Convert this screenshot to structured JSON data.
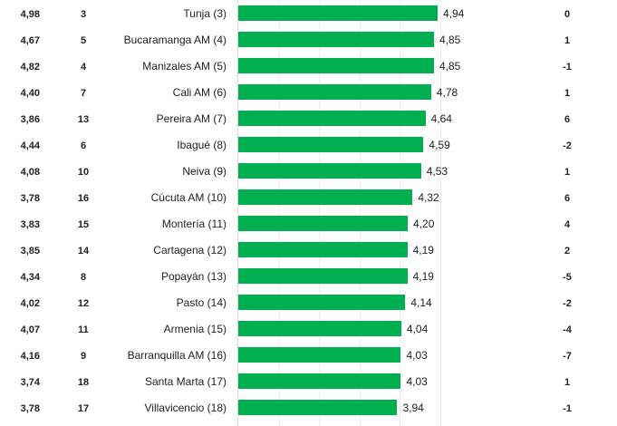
{
  "colors": {
    "bar": "#00b050",
    "text": "#222222",
    "axis": "#d9d9d9"
  },
  "chart_data": {
    "type": "bar",
    "orientation": "horizontal",
    "xlim": [
      0,
      5
    ],
    "grid": true,
    "categories": [
      "Tunja (3)",
      "Bucaramanga AM (4)",
      "Manizales AM (5)",
      "Cali AM (6)",
      "Pereira AM (7)",
      "Ibagué (8)",
      "Neiva (9)",
      "Cúcuta AM (10)",
      "Montería (11)",
      "Cartagena (12)",
      "Popayán (13)",
      "Pasto (14)",
      "Armenia (15)",
      "Barranquilla AM (16)",
      "Santa Marta (17)",
      "Villavicencio (18)"
    ],
    "values": [
      "4,94",
      "4,85",
      "4,85",
      "4,78",
      "4,64",
      "4,59",
      "4,53",
      "4,32",
      "4,20",
      "4,19",
      "4,19",
      "4,14",
      "4,04",
      "4,03",
      "4,03",
      "3,94"
    ],
    "previous_score": [
      "4,98",
      "4,67",
      "4,82",
      "4,40",
      "3,86",
      "4,44",
      "4,08",
      "3,78",
      "3,83",
      "3,85",
      "4,34",
      "4,02",
      "4,07",
      "4,16",
      "3,74",
      "3,78"
    ],
    "previous_rank": [
      "3",
      "5",
      "4",
      "7",
      "13",
      "6",
      "10",
      "16",
      "15",
      "14",
      "8",
      "12",
      "11",
      "9",
      "18",
      "17"
    ],
    "rank_change": [
      "0",
      "1",
      "-1",
      "1",
      "6",
      "-2",
      "1",
      "6",
      "4",
      "2",
      "-5",
      "-2",
      "-4",
      "-7",
      "1",
      "-1"
    ]
  }
}
